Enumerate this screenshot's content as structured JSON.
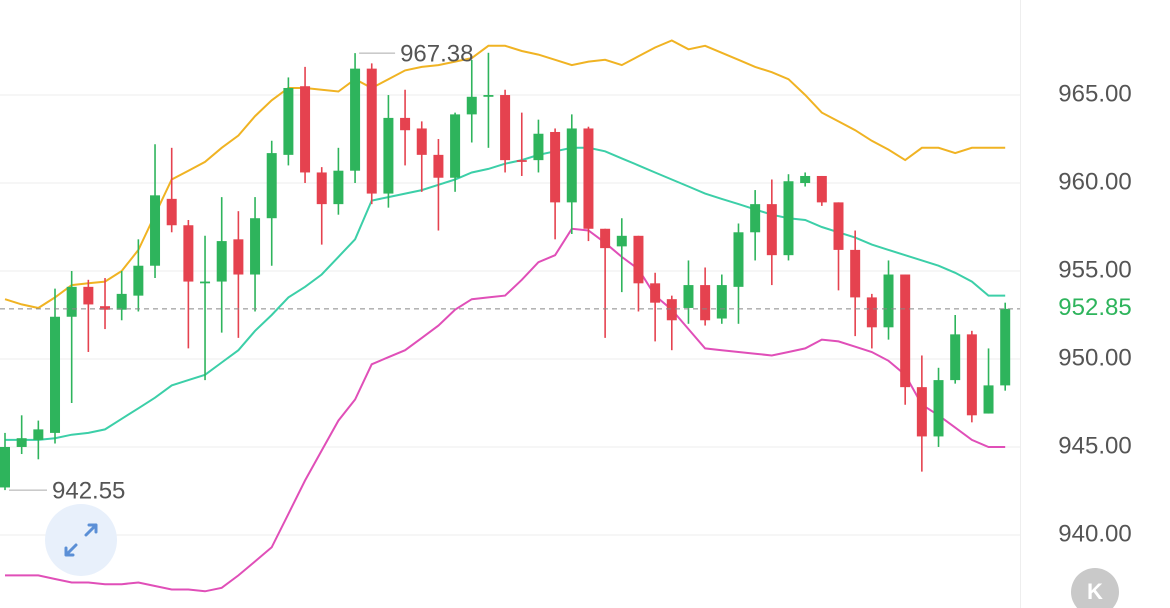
{
  "chart_data": {
    "type": "candlestick",
    "open": [
      942.7,
      945.0,
      945.4,
      945.8,
      952.4,
      954.1,
      953.0,
      952.8,
      953.6,
      955.3,
      959.1,
      957.6,
      954.3,
      954.4,
      956.8,
      954.8,
      958.0,
      961.6,
      965.5,
      960.6,
      958.8,
      960.7,
      966.5,
      959.4,
      963.7,
      963.1,
      961.6,
      960.3,
      963.9,
      964.9,
      965.0,
      961.3,
      961.3,
      962.9,
      958.9,
      963.1,
      957.4,
      956.4,
      957.0,
      954.3,
      953.4,
      952.9,
      954.2,
      952.3,
      954.1,
      957.2,
      958.8,
      955.9,
      960.0,
      960.4,
      958.9,
      956.2,
      953.5,
      951.8,
      954.8,
      948.4,
      945.6,
      948.8,
      951.4,
      946.9,
      948.5
    ],
    "high": [
      945.8,
      946.8,
      946.5,
      954.0,
      955.0,
      954.5,
      954.6,
      955.0,
      956.8,
      962.2,
      962.0,
      957.9,
      957.0,
      959.2,
      958.4,
      959.2,
      962.4,
      966.0,
      966.6,
      960.9,
      962.0,
      967.38,
      966.8,
      965.0,
      965.3,
      963.5,
      962.5,
      964.0,
      967.0,
      967.4,
      965.3,
      964.0,
      963.6,
      963.1,
      963.9,
      963.2,
      957.4,
      958.0,
      957.0,
      954.9,
      953.6,
      955.6,
      955.2,
      954.8,
      957.7,
      959.6,
      960.2,
      960.5,
      960.6,
      960.4,
      958.9,
      957.3,
      953.7,
      955.6,
      954.8,
      950.2,
      949.5,
      952.5,
      951.6,
      950.6,
      953.2
    ],
    "low": [
      942.55,
      944.6,
      944.3,
      945.2,
      947.5,
      950.4,
      951.7,
      952.2,
      952.7,
      954.6,
      957.2,
      950.6,
      948.8,
      951.5,
      951.2,
      952.7,
      955.3,
      961.0,
      960.0,
      956.5,
      958.2,
      960.0,
      958.8,
      958.6,
      961.0,
      959.5,
      957.3,
      959.5,
      962.3,
      962.0,
      960.6,
      960.4,
      960.6,
      956.8,
      957.1,
      956.7,
      951.2,
      953.8,
      952.7,
      951.0,
      950.5,
      952.0,
      951.9,
      952.0,
      952.0,
      955.6,
      954.2,
      955.6,
      959.8,
      958.7,
      953.9,
      951.3,
      950.6,
      951.1,
      947.4,
      943.6,
      945.0,
      948.6,
      946.4,
      946.9,
      948.2
    ],
    "close": [
      945.0,
      945.5,
      946.0,
      952.4,
      954.1,
      953.1,
      952.8,
      953.7,
      955.3,
      959.3,
      957.6,
      954.4,
      954.4,
      956.7,
      954.8,
      958.0,
      961.7,
      965.4,
      960.6,
      958.8,
      960.7,
      966.5,
      959.4,
      963.7,
      963.0,
      961.6,
      960.3,
      963.9,
      964.9,
      965.0,
      961.3,
      961.2,
      962.8,
      958.9,
      963.1,
      957.4,
      956.3,
      957.0,
      954.3,
      953.2,
      952.2,
      954.2,
      952.2,
      954.2,
      957.2,
      958.8,
      955.9,
      960.1,
      960.4,
      958.9,
      956.2,
      953.5,
      951.8,
      954.8,
      948.4,
      945.6,
      948.8,
      951.4,
      946.8,
      948.5,
      952.85
    ],
    "up_color": "#2eb45c",
    "down_color": "#e5424f",
    "lines": [
      {
        "color": "#f0b323",
        "values": [
          953.4,
          953.1,
          952.9,
          953.5,
          954.2,
          954.3,
          954.4,
          955.0,
          956.2,
          958.2,
          960.2,
          960.7,
          961.2,
          962.0,
          962.7,
          963.8,
          964.7,
          965.4,
          965.4,
          965.3,
          965.2,
          965.9,
          965.4,
          965.9,
          966.4,
          966.6,
          966.7,
          966.9,
          967.1,
          967.8,
          967.8,
          967.5,
          967.3,
          967.0,
          966.7,
          966.9,
          967.0,
          966.7,
          967.2,
          967.7,
          968.1,
          967.6,
          967.8,
          967.4,
          967.0,
          966.6,
          966.3,
          965.9,
          965.0,
          964.0,
          963.5,
          963.0,
          962.4,
          961.9,
          961.3,
          962.0,
          962.0,
          961.7,
          962.0,
          962.0,
          962.0
        ]
      },
      {
        "color": "#3ccfa8",
        "values": [
          945.4,
          945.4,
          945.4,
          945.5,
          945.7,
          945.8,
          946.0,
          946.6,
          947.2,
          947.8,
          948.5,
          948.8,
          949.1,
          949.8,
          950.5,
          951.6,
          952.5,
          953.5,
          954.1,
          954.8,
          955.8,
          956.8,
          959.0,
          959.2,
          959.4,
          959.6,
          959.9,
          960.2,
          960.6,
          960.8,
          961.1,
          961.3,
          961.6,
          961.8,
          962.0,
          962.0,
          961.8,
          961.4,
          961.0,
          960.6,
          960.2,
          959.8,
          959.4,
          959.1,
          958.8,
          958.5,
          958.2,
          958.0,
          957.9,
          957.5,
          957.2,
          956.9,
          956.5,
          956.2,
          955.9,
          955.6,
          955.3,
          954.9,
          954.4,
          953.6,
          953.6
        ]
      },
      {
        "color": "#e04fb8",
        "values": [
          937.7,
          937.7,
          937.7,
          937.5,
          937.3,
          937.3,
          937.2,
          937.2,
          937.3,
          937.1,
          936.9,
          936.9,
          936.8,
          937.0,
          937.7,
          938.5,
          939.3,
          941.2,
          943.1,
          944.8,
          946.5,
          947.7,
          949.7,
          950.1,
          950.5,
          951.2,
          951.9,
          952.8,
          953.4,
          953.5,
          953.6,
          954.5,
          955.5,
          955.9,
          957.4,
          957.3,
          956.6,
          955.8,
          955.1,
          953.6,
          952.8,
          951.7,
          950.6,
          950.5,
          950.4,
          950.3,
          950.2,
          950.4,
          950.6,
          951.1,
          951.0,
          950.7,
          950.4,
          949.9,
          949.1,
          947.4,
          946.8,
          946.1,
          945.4,
          945.0,
          945.0
        ]
      }
    ],
    "ylim": [
      935.85,
      970.4
    ],
    "yticks": [
      {
        "value": 940,
        "label": "940.00"
      },
      {
        "value": 945,
        "label": "945.00"
      },
      {
        "value": 950,
        "label": "950.00"
      },
      {
        "value": 955,
        "label": "955.00"
      },
      {
        "value": 960,
        "label": "960.00"
      },
      {
        "value": 965,
        "label": "965.00"
      }
    ],
    "grid": true,
    "max_label": 967.38,
    "min_label": 942.55,
    "last_price": 952.85,
    "k_button": "K"
  }
}
